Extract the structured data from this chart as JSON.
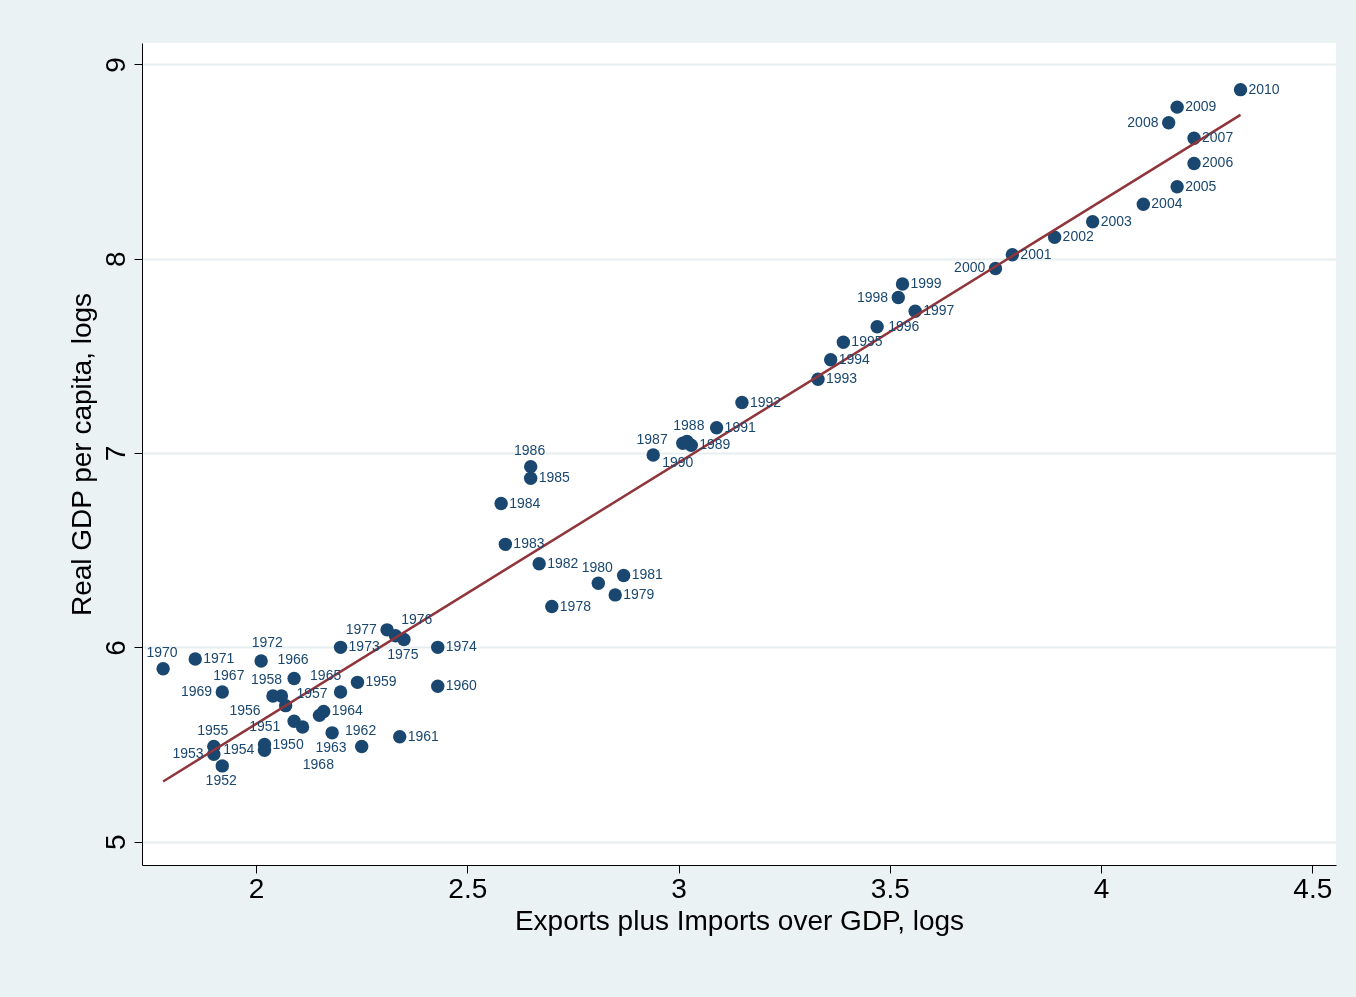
{
  "chart_data": {
    "type": "scatter",
    "xlabel": "Exports plus Imports over GDP, logs",
    "ylabel": "Real GDP per capita, logs",
    "xlim": [
      1.73,
      4.556
    ],
    "xticks": [
      2,
      2.5,
      3,
      3.5,
      4,
      4.5
    ],
    "ylim": [
      4.88,
      9.11
    ],
    "yticks": [
      5,
      6,
      7,
      8,
      9
    ],
    "grid": "y",
    "marker": "circle",
    "series": [
      {
        "color": "#1a476f",
        "x": [
          2.02,
          2.11,
          1.92,
          1.9,
          2.02,
          1.9,
          2.09,
          2.07,
          2.06,
          2.24,
          2.43,
          2.34,
          2.25,
          2.18,
          2.16,
          2.2,
          2.09,
          2.04,
          2.15,
          1.92,
          1.78,
          1.856,
          2.012,
          2.2,
          2.43,
          2.35,
          2.33,
          2.31,
          2.7,
          2.85,
          2.81,
          2.87,
          2.67,
          2.59,
          2.58,
          2.65,
          2.65,
          2.94,
          3.01,
          3.03,
          3.02,
          3.09,
          3.15,
          3.33,
          3.36,
          3.39,
          3.47,
          3.56,
          3.52,
          3.53,
          3.75,
          3.79,
          3.89,
          3.98,
          4.1,
          4.18,
          4.22,
          4.22,
          4.16,
          4.18,
          4.33
        ],
        "values": [
          5.5,
          5.59,
          5.39,
          5.45,
          5.47,
          5.49,
          5.62,
          5.7,
          5.75,
          5.82,
          5.8,
          5.54,
          5.49,
          5.56,
          5.67,
          5.77,
          5.84,
          5.75,
          5.65,
          5.77,
          5.89,
          5.94,
          5.93,
          6.0,
          6.0,
          6.04,
          6.06,
          6.09,
          6.21,
          6.27,
          6.33,
          6.37,
          6.43,
          6.53,
          6.74,
          6.87,
          6.93,
          6.99,
          7.05,
          7.04,
          7.06,
          7.13,
          7.26,
          7.38,
          7.48,
          7.57,
          7.65,
          7.73,
          7.8,
          7.87,
          7.95,
          8.02,
          8.11,
          8.19,
          8.28,
          8.37,
          8.49,
          8.62,
          8.7,
          8.78,
          8.87
        ]
      },
      {
        "type": "line",
        "color": "#90353b",
        "marker": "none",
        "x": [
          1.78,
          4.33
        ],
        "values": [
          5.31,
          8.74
        ]
      }
    ],
    "annotations": [
      {
        "text": "1950",
        "x": 2.02,
        "y": 5.5
      },
      {
        "text": "1951",
        "x": 2.11,
        "y": 5.59
      },
      {
        "text": "1952",
        "x": 1.92,
        "y": 5.39
      },
      {
        "text": "1953",
        "x": 1.9,
        "y": 5.45
      },
      {
        "text": "1954",
        "x": 2.02,
        "y": 5.47
      },
      {
        "text": "1955",
        "x": 1.9,
        "y": 5.49
      },
      {
        "text": "1956",
        "x": 2.09,
        "y": 5.62
      },
      {
        "text": "1957",
        "x": 2.07,
        "y": 5.7
      },
      {
        "text": "1958",
        "x": 2.06,
        "y": 5.75
      },
      {
        "text": "1959",
        "x": 2.24,
        "y": 5.82
      },
      {
        "text": "1960",
        "x": 2.43,
        "y": 5.8
      },
      {
        "text": "1961",
        "x": 2.34,
        "y": 5.54
      },
      {
        "text": "1962",
        "x": 2.25,
        "y": 5.49
      },
      {
        "text": "1963",
        "x": 2.18,
        "y": 5.56
      },
      {
        "text": "1964",
        "x": 2.16,
        "y": 5.67
      },
      {
        "text": "1965",
        "x": 2.2,
        "y": 5.77
      },
      {
        "text": "1966",
        "x": 2.09,
        "y": 5.84
      },
      {
        "text": "1967",
        "x": 2.04,
        "y": 5.75
      },
      {
        "text": "1968",
        "x": 2.15,
        "y": 5.65
      },
      {
        "text": "1969",
        "x": 1.92,
        "y": 5.77
      },
      {
        "text": "1970",
        "x": 1.78,
        "y": 5.89
      },
      {
        "text": "1971",
        "x": 1.856,
        "y": 5.94
      },
      {
        "text": "1972",
        "x": 2.012,
        "y": 5.93
      },
      {
        "text": "1973",
        "x": 2.2,
        "y": 6.0
      },
      {
        "text": "1974",
        "x": 2.43,
        "y": 6.0
      },
      {
        "text": "1975",
        "x": 2.35,
        "y": 6.04
      },
      {
        "text": "1976",
        "x": 2.33,
        "y": 6.06
      },
      {
        "text": "1977",
        "x": 2.31,
        "y": 6.09
      },
      {
        "text": "1978",
        "x": 2.7,
        "y": 6.21
      },
      {
        "text": "1979",
        "x": 2.85,
        "y": 6.27
      },
      {
        "text": "1980",
        "x": 2.81,
        "y": 6.33
      },
      {
        "text": "1981",
        "x": 2.87,
        "y": 6.37
      },
      {
        "text": "1982",
        "x": 2.67,
        "y": 6.43
      },
      {
        "text": "1983",
        "x": 2.59,
        "y": 6.53
      },
      {
        "text": "1984",
        "x": 2.58,
        "y": 6.74
      },
      {
        "text": "1985",
        "x": 2.65,
        "y": 6.87
      },
      {
        "text": "1986",
        "x": 2.65,
        "y": 6.93
      },
      {
        "text": "1987",
        "x": 2.94,
        "y": 6.99
      },
      {
        "text": "1988",
        "x": 3.01,
        "y": 7.05
      },
      {
        "text": "1989",
        "x": 3.03,
        "y": 7.04
      },
      {
        "text": "1990",
        "x": 3.02,
        "y": 7.06
      },
      {
        "text": "1991",
        "x": 3.09,
        "y": 7.13
      },
      {
        "text": "1992",
        "x": 3.15,
        "y": 7.26
      },
      {
        "text": "1993",
        "x": 3.33,
        "y": 7.38
      },
      {
        "text": "1994",
        "x": 3.36,
        "y": 7.48
      },
      {
        "text": "1995",
        "x": 3.39,
        "y": 7.57
      },
      {
        "text": "1996",
        "x": 3.47,
        "y": 7.65
      },
      {
        "text": "1997",
        "x": 3.56,
        "y": 7.73
      },
      {
        "text": "1998",
        "x": 3.52,
        "y": 7.8
      },
      {
        "text": "1999",
        "x": 3.53,
        "y": 7.87
      },
      {
        "text": "2000",
        "x": 3.75,
        "y": 7.95
      },
      {
        "text": "2001",
        "x": 3.79,
        "y": 8.02
      },
      {
        "text": "2002",
        "x": 3.89,
        "y": 8.11
      },
      {
        "text": "2003",
        "x": 3.98,
        "y": 8.19
      },
      {
        "text": "2004",
        "x": 4.1,
        "y": 8.28
      },
      {
        "text": "2005",
        "x": 4.18,
        "y": 8.37
      },
      {
        "text": "2006",
        "x": 4.22,
        "y": 8.49
      },
      {
        "text": "2007",
        "x": 4.22,
        "y": 8.62
      },
      {
        "text": "2008",
        "x": 4.16,
        "y": 8.7
      },
      {
        "text": "2009",
        "x": 4.18,
        "y": 8.78
      },
      {
        "text": "2010",
        "x": 4.33,
        "y": 8.87
      }
    ]
  }
}
